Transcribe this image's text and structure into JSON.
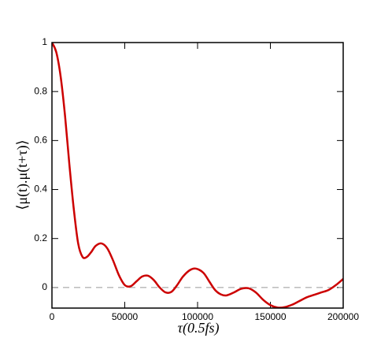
{
  "chart_data": {
    "type": "line",
    "x_label": "τ(0.5fs)",
    "y_label": "⟨μ(t).μ(t+τ)⟩",
    "x": [
      0,
      3000,
      6000,
      9000,
      12000,
      15000,
      18000,
      21000,
      24000,
      27000,
      30000,
      34000,
      38000,
      42000,
      46000,
      50000,
      54000,
      58000,
      62000,
      66000,
      70000,
      74000,
      78000,
      82000,
      86000,
      90000,
      95000,
      99000,
      104000,
      108000,
      112000,
      116000,
      120000,
      125000,
      130000,
      135000,
      140000,
      145000,
      150000,
      155000,
      160000,
      165000,
      170000,
      175000,
      180000,
      185000,
      190000,
      195000,
      200000
    ],
    "series": [
      {
        "color": "#cc0000",
        "values": [
          1.0,
          0.96,
          0.86,
          0.7,
          0.5,
          0.32,
          0.18,
          0.125,
          0.125,
          0.145,
          0.17,
          0.18,
          0.16,
          0.11,
          0.05,
          0.01,
          0.005,
          0.025,
          0.045,
          0.048,
          0.03,
          0.0,
          -0.02,
          -0.018,
          0.01,
          0.045,
          0.072,
          0.077,
          0.06,
          0.025,
          -0.01,
          -0.028,
          -0.032,
          -0.02,
          -0.005,
          -0.003,
          -0.02,
          -0.05,
          -0.072,
          -0.082,
          -0.08,
          -0.07,
          -0.055,
          -0.04,
          -0.03,
          -0.02,
          -0.01,
          0.01,
          0.035
        ]
      }
    ],
    "xlim": [
      0,
      200000
    ],
    "xticks": [
      0,
      50000,
      100000,
      150000,
      200000
    ],
    "ylim": [
      -0.084,
      1
    ],
    "yticks": [
      0,
      0.2,
      0.4,
      0.6,
      0.8,
      1
    ],
    "zero_line": true,
    "grid": false
  }
}
